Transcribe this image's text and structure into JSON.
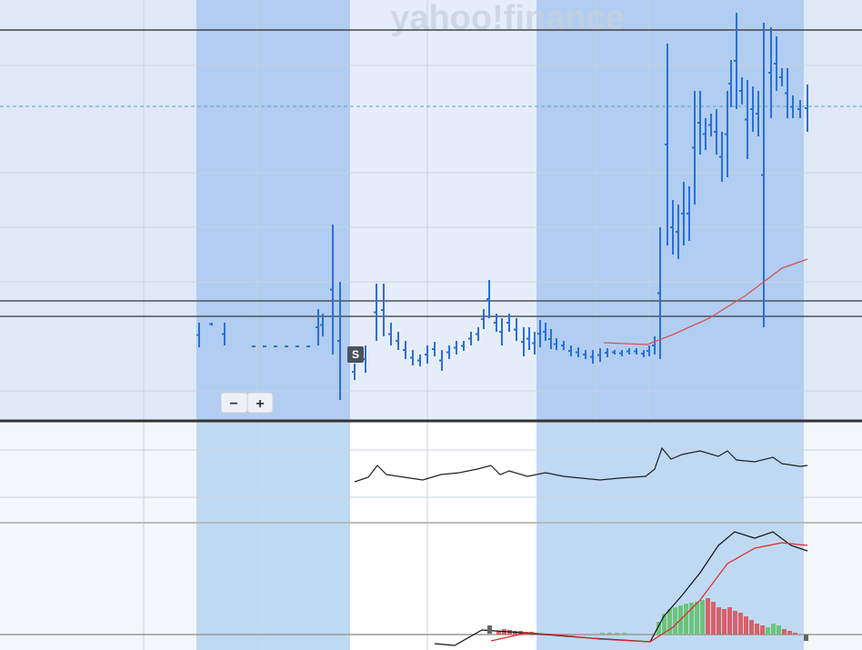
{
  "watermark": "yahoo!finance",
  "marker": "S",
  "zoom": {
    "out": "−",
    "in": "+"
  }
}
